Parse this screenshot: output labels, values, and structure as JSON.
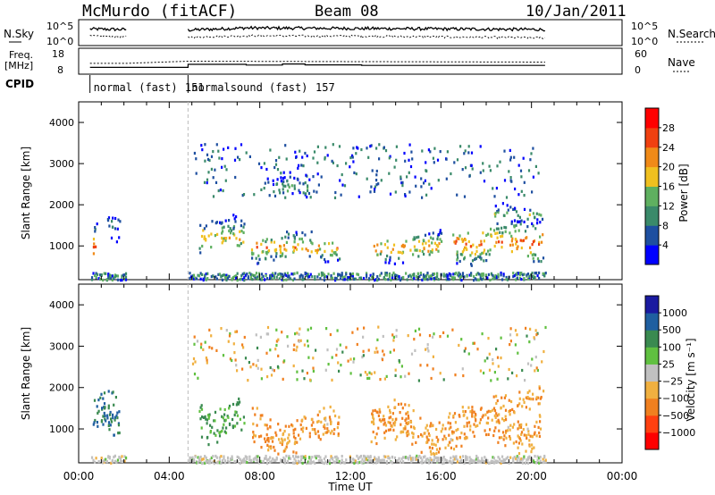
{
  "header": {
    "station": "McMurdo (fitACF)",
    "beam": "Beam 08",
    "date": "10/Jan/2011"
  },
  "noise_panel": {
    "left_label": "N.Sky",
    "left_ticks": [
      "10^5",
      "10^0"
    ],
    "right_ticks": [
      "10^5",
      "10^0"
    ],
    "right_label": "N.Search"
  },
  "freq_panel": {
    "left_label_line1": "Freq.",
    "left_label_line2": "[MHz]",
    "left_ticks": [
      "18",
      "8"
    ],
    "right_ticks": [
      "60",
      "0"
    ],
    "right_label": "Nave"
  },
  "cpid": {
    "label": "CPID",
    "segments": [
      {
        "start": 0.5,
        "end": 4.83,
        "name": "normal (fast)",
        "id": "151"
      },
      {
        "start": 4.83,
        "end": 20.6,
        "name": "normalsound (fast)",
        "id": "157"
      }
    ]
  },
  "colors": {
    "power_scale": [
      "#0000ff",
      "#1e4fa0",
      "#3a8a6a",
      "#5fb060",
      "#f0c020",
      "#f08a18",
      "#f04010",
      "#ff0000"
    ],
    "velocity_scale": [
      "#ff0000",
      "#ff4010",
      "#f08020",
      "#f0b040",
      "#c0c0c0",
      "#60c040",
      "#3a8a50",
      "#1f5fa0",
      "#1a1aa0"
    ]
  },
  "chart_data": [
    {
      "type": "line",
      "title": "",
      "series": [
        {
          "name": "N.Sky",
          "values": [
            [
              0.5,
              3.2
            ],
            [
              2.1,
              3.1
            ],
            [
              4.83,
              3.0
            ],
            [
              7.4,
              3.4
            ],
            [
              12.5,
              3.3
            ],
            [
              20.6,
              3.1
            ]
          ]
        },
        {
          "name": "N.Search",
          "values": [
            [
              0.5,
              1.8
            ],
            [
              2.1,
              1.7
            ],
            [
              4.83,
              1.6
            ],
            [
              7.4,
              1.9
            ],
            [
              12.5,
              1.8
            ],
            [
              20.6,
              1.5
            ]
          ]
        }
      ],
      "xlim": [
        0,
        24
      ],
      "ylim": [
        0,
        5
      ],
      "yscale": "log"
    },
    {
      "type": "line",
      "title": "",
      "series": [
        {
          "name": "Freq",
          "values": [
            [
              0.5,
              10.3
            ],
            [
              2.1,
              10.3
            ],
            [
              4.83,
              12.0
            ],
            [
              7.4,
              11.6
            ],
            [
              9.0,
              12.2
            ],
            [
              10.0,
              11.7
            ],
            [
              12.5,
              11.4
            ],
            [
              20.6,
              11.4
            ]
          ]
        },
        {
          "name": "Nave",
          "values": [
            [
              0.5,
              25
            ],
            [
              2.1,
              25
            ],
            [
              4.83,
              30
            ],
            [
              20.6,
              28
            ]
          ]
        }
      ],
      "xlim": [
        0,
        24
      ]
    },
    {
      "type": "heatmap",
      "title": "",
      "ylabel": "Slant Range [km]",
      "yticks": [
        "1000",
        "2000",
        "3000",
        "4000"
      ],
      "ylim": [
        180,
        4500
      ],
      "xlim": [
        0,
        24
      ],
      "colorbar_label": "Power [dB]",
      "colorbar_ticks": [
        "4",
        "8",
        "12",
        "16",
        "20",
        "24",
        "28"
      ],
      "features": [
        {
          "t0": 0.6,
          "t1": 0.8,
          "r0": 700,
          "r1": 1200,
          "level": 28
        },
        {
          "t0": 0.6,
          "t1": 0.9,
          "r0": 1300,
          "r1": 1600,
          "level": 10
        },
        {
          "t0": 1.2,
          "t1": 1.8,
          "r0": 1300,
          "r1": 1900,
          "level": 10
        },
        {
          "t0": 5.3,
          "t1": 7.3,
          "r0": 900,
          "r1": 1600,
          "level": 20
        },
        {
          "t0": 7.6,
          "t1": 11.5,
          "r0": 700,
          "r1": 1300,
          "level": 22
        },
        {
          "t0": 8.5,
          "t1": 10.2,
          "r0": 2200,
          "r1": 2700,
          "level": 14
        },
        {
          "t0": 13.0,
          "t1": 16.0,
          "r0": 700,
          "r1": 1300,
          "level": 22
        },
        {
          "t0": 16.5,
          "t1": 20.5,
          "r0": 700,
          "r1": 1500,
          "level": 24
        },
        {
          "t0": 18.3,
          "t1": 20.5,
          "r0": 1600,
          "r1": 2000,
          "level": 16
        }
      ]
    },
    {
      "type": "heatmap",
      "title": "",
      "ylabel": "Slant Range [km]",
      "yticks": [
        "1000",
        "2000",
        "3000",
        "4000"
      ],
      "ylim": [
        180,
        4500
      ],
      "xlim": [
        0,
        24
      ],
      "xlabel": "Time UT",
      "xticks": [
        "00:00",
        "04:00",
        "08:00",
        "12:00",
        "16:00",
        "20:00",
        "00:00"
      ],
      "colorbar_label": "Velocity [m s⁻¹]",
      "colorbar_ticks": [
        "1000",
        "500",
        "100",
        "25",
        "−25",
        "−100",
        "−500",
        "−1000"
      ],
      "features": [
        {
          "t0": 0.6,
          "t1": 1.8,
          "r0": 700,
          "r1": 1800,
          "level": 500
        },
        {
          "t0": 5.3,
          "t1": 7.3,
          "r0": 900,
          "r1": 1700,
          "level": 100
        },
        {
          "t0": 7.6,
          "t1": 11.5,
          "r0": 600,
          "r1": 1400,
          "level": -100
        },
        {
          "t0": 12.8,
          "t1": 20.5,
          "r0": 600,
          "r1": 1500,
          "level": -100
        },
        {
          "t0": 18.3,
          "t1": 20.5,
          "r0": 1500,
          "r1": 2000,
          "level": -100
        }
      ]
    }
  ],
  "axes": {
    "xticks": [
      "00:00",
      "04:00",
      "08:00",
      "12:00",
      "16:00",
      "20:00",
      "00:00"
    ],
    "xlabel": "Time UT",
    "ylabel": "Slant Range [km]",
    "yticks": [
      "1000",
      "2000",
      "3000",
      "4000"
    ],
    "power_label": "Power [dB]",
    "power_ticks": [
      "4",
      "8",
      "12",
      "16",
      "20",
      "24",
      "28"
    ],
    "velocity_label": "Velocity [m s⁻¹]",
    "velocity_ticks": [
      "1000",
      "500",
      "100",
      "25",
      "−25",
      "−100",
      "−500",
      "−1000"
    ]
  }
}
